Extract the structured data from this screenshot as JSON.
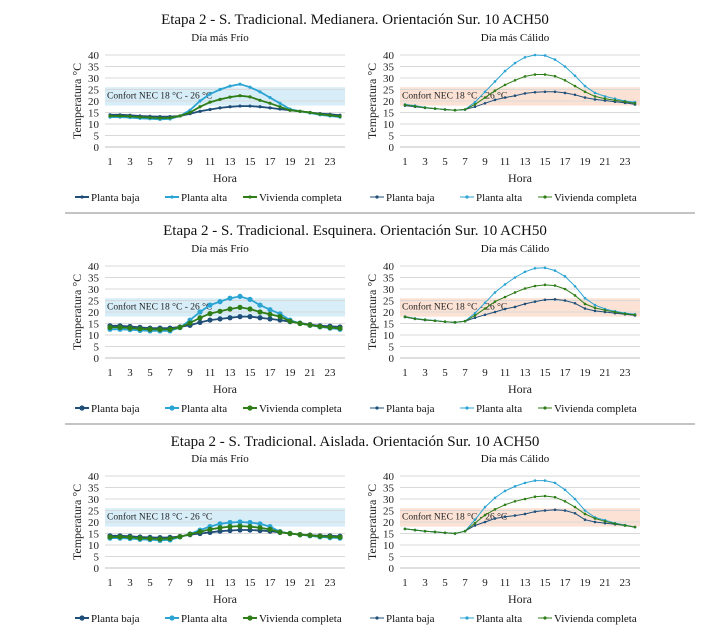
{
  "colors": {
    "planta_baja": "#1f4e79",
    "planta_alta": "#2ba4d3",
    "vivienda_completa": "#2f7d17",
    "band_frio": "#d7eef9",
    "band_calido": "#fbe2d5",
    "divider": "#888888",
    "grid": "#d9d9d9"
  },
  "rows": [
    {
      "title": "Etapa 2 - S. Tradicional. Medianera. Orientación Sur. 10 ACH50"
    },
    {
      "title": "Etapa 2 - S. Tradicional. Esquinera. Orientación Sur. 10 ACH50"
    },
    {
      "title": "Etapa 2 - S. Tradicional. Aislada. Orientación Sur. 10 ACH50"
    }
  ],
  "chart_data": [
    {
      "type": "line",
      "row": 0,
      "title": "Día más Frío",
      "xlabel": "Hora",
      "ylabel": "Temperatura °C",
      "ylim": [
        0,
        40
      ],
      "yticks": [
        0,
        5,
        10,
        15,
        20,
        25,
        30,
        35,
        40
      ],
      "x": [
        1,
        2,
        3,
        4,
        5,
        6,
        7,
        8,
        9,
        10,
        11,
        12,
        13,
        14,
        15,
        16,
        17,
        18,
        19,
        20,
        21,
        22,
        23,
        24
      ],
      "xticklabels": [
        "1",
        "3",
        "5",
        "7",
        "9",
        "11",
        "13",
        "15",
        "17",
        "19",
        "21",
        "23"
      ],
      "band": {
        "range": [
          18,
          26
        ],
        "label": "Confort NEC 18 °C - 26 °C",
        "color": "#d7eef9"
      },
      "grid": true,
      "legend": "bottom",
      "series": [
        {
          "name": "Planta baja",
          "values": [
            14,
            14,
            13.8,
            13.5,
            13.3,
            13.2,
            13.2,
            13.5,
            14.5,
            15.5,
            16.3,
            17,
            17.5,
            17.8,
            17.8,
            17.5,
            17,
            16.5,
            16,
            15.5,
            15,
            14.5,
            14.2,
            13.8
          ]
        },
        {
          "name": "Planta alta",
          "values": [
            13,
            13,
            12.8,
            12.5,
            12.3,
            12,
            12.2,
            13.5,
            16,
            20,
            23,
            25,
            26.5,
            27.3,
            26,
            24,
            21.5,
            19,
            16.5,
            15.5,
            14.8,
            14,
            13.5,
            13
          ]
        },
        {
          "name": "Vivienda completa",
          "values": [
            13.5,
            13.5,
            13.3,
            13,
            12.8,
            12.6,
            12.7,
            13.5,
            15,
            17.5,
            19.5,
            20.7,
            21.7,
            22.3,
            21.8,
            20.3,
            19,
            17.5,
            16,
            15.5,
            15,
            14.3,
            13.8,
            13.3
          ]
        }
      ]
    },
    {
      "type": "line",
      "row": 0,
      "title": "Día más Cálido",
      "xlabel": "Hora",
      "ylabel": "Temperatura °C",
      "ylim": [
        0,
        40
      ],
      "yticks": [
        0,
        5,
        10,
        15,
        20,
        25,
        30,
        35,
        40
      ],
      "x": [
        1,
        2,
        3,
        4,
        5,
        6,
        7,
        8,
        9,
        10,
        11,
        12,
        13,
        14,
        15,
        16,
        17,
        18,
        19,
        20,
        21,
        22,
        23,
        24
      ],
      "xticklabels": [
        "1",
        "3",
        "5",
        "7",
        "9",
        "11",
        "13",
        "15",
        "17",
        "19",
        "21",
        "23"
      ],
      "band": {
        "range": [
          18,
          26
        ],
        "label": "Confort NEC 18 °C - 26 °C",
        "color": "#fbe2d5"
      },
      "grid": true,
      "legend": "bottom",
      "series": [
        {
          "name": "Planta baja",
          "values": [
            18,
            17.5,
            17,
            16.7,
            16.3,
            16,
            16.3,
            17.5,
            19,
            20.5,
            21.5,
            22.3,
            23.3,
            23.8,
            24,
            24,
            23.5,
            22.7,
            21.5,
            20.7,
            20.2,
            19.7,
            19.2,
            18.5
          ]
        },
        {
          "name": "Planta alta",
          "values": [
            18.5,
            18,
            17.2,
            16.7,
            16.3,
            16,
            16.3,
            19.5,
            24,
            28.5,
            33,
            36.5,
            39,
            40,
            39.8,
            38,
            35,
            31,
            26.5,
            23.5,
            22,
            21,
            20,
            19.5
          ]
        },
        {
          "name": "Vivienda completa",
          "values": [
            18.3,
            17.7,
            17.1,
            16.7,
            16.3,
            16,
            16.3,
            18.5,
            21.5,
            24.5,
            27,
            29,
            30.7,
            31.5,
            31.5,
            30.8,
            29,
            26.5,
            24,
            22,
            21,
            20.3,
            19.7,
            19
          ]
        }
      ]
    },
    {
      "type": "line",
      "row": 1,
      "title": "Día más Frío",
      "xlabel": "Hora",
      "ylabel": "Temperatura °C",
      "ylim": [
        0,
        40
      ],
      "yticks": [
        0,
        5,
        10,
        15,
        20,
        25,
        30,
        35,
        40
      ],
      "x": [
        1,
        2,
        3,
        4,
        5,
        6,
        7,
        8,
        9,
        10,
        11,
        12,
        13,
        14,
        15,
        16,
        17,
        18,
        19,
        20,
        21,
        22,
        23,
        24
      ],
      "xticklabels": [
        "1",
        "3",
        "5",
        "7",
        "9",
        "11",
        "13",
        "15",
        "17",
        "19",
        "21",
        "23"
      ],
      "band": {
        "range": [
          18,
          26
        ],
        "label": "Confort NEC 18 °C - 26 °C",
        "color": "#d7eef9"
      },
      "grid": true,
      "legend": "bottom",
      "series": [
        {
          "name": "Planta baja",
          "values": [
            14,
            14,
            13.7,
            13.3,
            13,
            13,
            13,
            13.5,
            14.2,
            15.5,
            16.5,
            17,
            17.5,
            18,
            18,
            17.5,
            17,
            16.5,
            15.8,
            15.2,
            14.5,
            14,
            13.8,
            13.5
          ]
        },
        {
          "name": "Planta alta",
          "values": [
            12.5,
            12.5,
            12.3,
            12,
            11.8,
            11.8,
            11.8,
            13.2,
            16.5,
            20,
            23,
            24.5,
            26,
            26.8,
            25.5,
            23,
            21,
            19.2,
            16.5,
            15,
            14.2,
            13.5,
            13,
            12.5
          ]
        },
        {
          "name": "Vivienda completa",
          "values": [
            13.3,
            13.3,
            13,
            12.7,
            12.5,
            12.4,
            12.4,
            13.3,
            15.2,
            17.5,
            19.3,
            20.3,
            21.3,
            22,
            21.3,
            20,
            19,
            18,
            16,
            15,
            14.3,
            13.7,
            13.2,
            12.9
          ]
        }
      ]
    },
    {
      "type": "line",
      "row": 1,
      "title": "Día más Cálido",
      "xlabel": "Hora",
      "ylabel": "Temperatura °C",
      "ylim": [
        0,
        40
      ],
      "yticks": [
        0,
        5,
        10,
        15,
        20,
        25,
        30,
        35,
        40
      ],
      "x": [
        1,
        2,
        3,
        4,
        5,
        6,
        7,
        8,
        9,
        10,
        11,
        12,
        13,
        14,
        15,
        16,
        17,
        18,
        19,
        20,
        21,
        22,
        23,
        24
      ],
      "xticklabels": [
        "1",
        "3",
        "5",
        "7",
        "9",
        "11",
        "13",
        "15",
        "17",
        "19",
        "21",
        "23"
      ],
      "band": {
        "range": [
          18,
          26
        ],
        "label": "Confort NEC 18 °C - 26 °C",
        "color": "#fbe2d5"
      },
      "grid": true,
      "legend": "bottom",
      "series": [
        {
          "name": "Planta baja",
          "values": [
            17.8,
            17,
            16.5,
            16.2,
            15.8,
            15.5,
            16,
            17.5,
            18.8,
            20,
            21.3,
            22.2,
            23.5,
            24.5,
            25.3,
            25.5,
            25,
            23.8,
            21.5,
            20.5,
            20,
            19.5,
            19,
            18.5
          ]
        },
        {
          "name": "Planta alta",
          "values": [
            18,
            17.2,
            16.7,
            16.3,
            15.8,
            15.5,
            16,
            19.5,
            24,
            28.5,
            32,
            35,
            37.5,
            39,
            39.2,
            38,
            35.5,
            31.2,
            26,
            23,
            21.3,
            20.3,
            19.5,
            19
          ]
        },
        {
          "name": "Vivienda completa",
          "values": [
            17.9,
            17.1,
            16.6,
            16.2,
            15.8,
            15.5,
            16,
            18.5,
            21.5,
            24.5,
            26.5,
            28.5,
            30.2,
            31.3,
            31.8,
            31.5,
            30,
            27.2,
            23.5,
            21.8,
            20.8,
            20,
            19.2,
            18.8
          ]
        }
      ]
    },
    {
      "type": "line",
      "row": 2,
      "title": "Día más Frío",
      "xlabel": "Hora",
      "ylabel": "Temperatura °C",
      "ylim": [
        0,
        40
      ],
      "yticks": [
        0,
        5,
        10,
        15,
        20,
        25,
        30,
        35,
        40
      ],
      "x": [
        1,
        2,
        3,
        4,
        5,
        6,
        7,
        8,
        9,
        10,
        11,
        12,
        13,
        14,
        15,
        16,
        17,
        18,
        19,
        20,
        21,
        22,
        23,
        24
      ],
      "xticklabels": [
        "1",
        "3",
        "5",
        "7",
        "9",
        "11",
        "13",
        "15",
        "17",
        "19",
        "21",
        "23"
      ],
      "band": {
        "range": [
          18,
          26
        ],
        "label": "Confort NEC 18 °C - 26 °C",
        "color": "#d7eef9"
      },
      "grid": true,
      "legend": "bottom",
      "series": [
        {
          "name": "Planta baja",
          "values": [
            14,
            14,
            13.8,
            13.5,
            13.3,
            13.2,
            13.3,
            13.7,
            14.5,
            15,
            15.5,
            16,
            16.3,
            16.5,
            16.5,
            16.3,
            16,
            15.5,
            15,
            14.5,
            14.3,
            14,
            14,
            13.8
          ]
        },
        {
          "name": "Planta alta",
          "values": [
            13,
            13,
            12.8,
            12.5,
            12.3,
            12,
            12.2,
            13.5,
            14.8,
            16.5,
            18,
            19.2,
            19.8,
            20,
            19.8,
            19.2,
            18,
            15.8,
            15,
            14.5,
            14,
            13.5,
            13.2,
            13
          ]
        },
        {
          "name": "Vivienda completa",
          "values": [
            13.5,
            13.5,
            13.3,
            13,
            12.8,
            12.6,
            12.8,
            13.6,
            14.7,
            15.8,
            16.8,
            17.5,
            18,
            18.2,
            18,
            17.5,
            16.8,
            15.6,
            15,
            14.5,
            14.2,
            13.8,
            13.6,
            13.4
          ]
        }
      ]
    },
    {
      "type": "line",
      "row": 2,
      "title": "Día más Cálido",
      "xlabel": "Hora",
      "ylabel": "Temperatura °C",
      "ylim": [
        0,
        40
      ],
      "yticks": [
        0,
        5,
        10,
        15,
        20,
        25,
        30,
        35,
        40
      ],
      "x": [
        1,
        2,
        3,
        4,
        5,
        6,
        7,
        8,
        9,
        10,
        11,
        12,
        13,
        14,
        15,
        16,
        17,
        18,
        19,
        20,
        21,
        22,
        23,
        24
      ],
      "xticklabels": [
        "1",
        "3",
        "5",
        "7",
        "9",
        "11",
        "13",
        "15",
        "17",
        "19",
        "21",
        "23"
      ],
      "band": {
        "range": [
          18,
          26
        ],
        "label": "Confort NEC 18 °C - 26 °C",
        "color": "#fbe2d5"
      },
      "grid": true,
      "legend": "bottom",
      "series": [
        {
          "name": "Planta baja",
          "values": [
            17,
            16.5,
            16,
            15.7,
            15.3,
            15,
            16,
            18.5,
            20,
            21.5,
            22.3,
            22.8,
            23.5,
            24.5,
            25,
            25.3,
            25,
            23.8,
            21,
            20,
            19.5,
            19,
            18.5,
            17.8
          ]
        },
        {
          "name": "Planta alta",
          "values": [
            17,
            16.5,
            16,
            15.7,
            15.3,
            15,
            16,
            21,
            26.5,
            30.5,
            33.5,
            35.5,
            37,
            38,
            38,
            37,
            34,
            30,
            25,
            22,
            20.8,
            19.5,
            18.7,
            17.8
          ]
        },
        {
          "name": "Vivienda completa",
          "values": [
            17,
            16.5,
            16,
            15.7,
            15.3,
            15,
            16,
            19.5,
            23,
            25.5,
            27.5,
            29,
            30,
            31,
            31.3,
            30.8,
            29,
            26.5,
            23.5,
            21.5,
            20.3,
            19.3,
            18.5,
            17.8
          ]
        }
      ]
    }
  ]
}
